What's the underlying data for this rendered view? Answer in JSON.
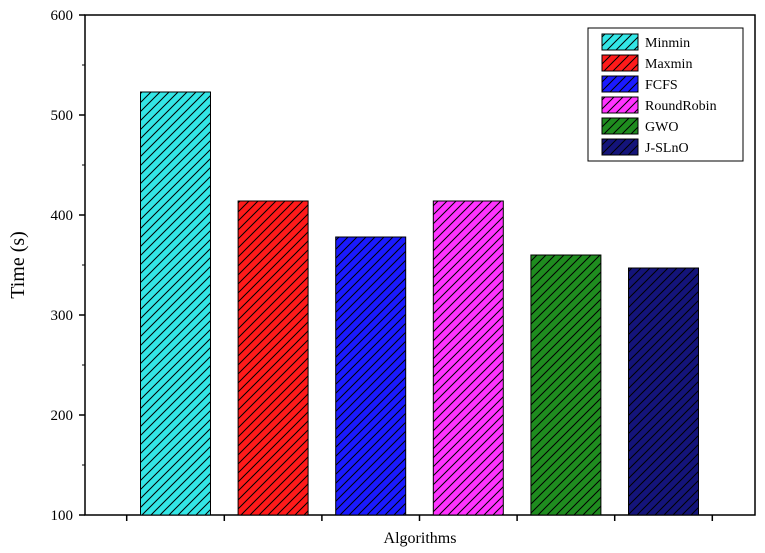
{
  "chart_data": {
    "type": "bar",
    "categories": [
      "Minmin",
      "Maxmin",
      "FCFS",
      "RoundRobin",
      "GWO",
      "J-SLnO"
    ],
    "values": [
      523,
      414,
      378,
      414,
      360,
      347
    ],
    "xlabel": "Algorithms",
    "ylabel": "Time (s)",
    "ylim": [
      100,
      600
    ],
    "yticks": [
      100,
      200,
      300,
      400,
      500,
      600
    ],
    "colors": [
      "#33e6e6",
      "#ff1a1a",
      "#1a1aff",
      "#ff33ff",
      "#1f8c1f",
      "#14147a"
    ],
    "legend": {
      "position": "top-right",
      "entries": [
        "Minmin",
        "Maxmin",
        "FCFS",
        "RoundRobin",
        "GWO",
        "J-SLnO"
      ]
    },
    "pattern": "diagonal-hatch",
    "grid": false
  }
}
